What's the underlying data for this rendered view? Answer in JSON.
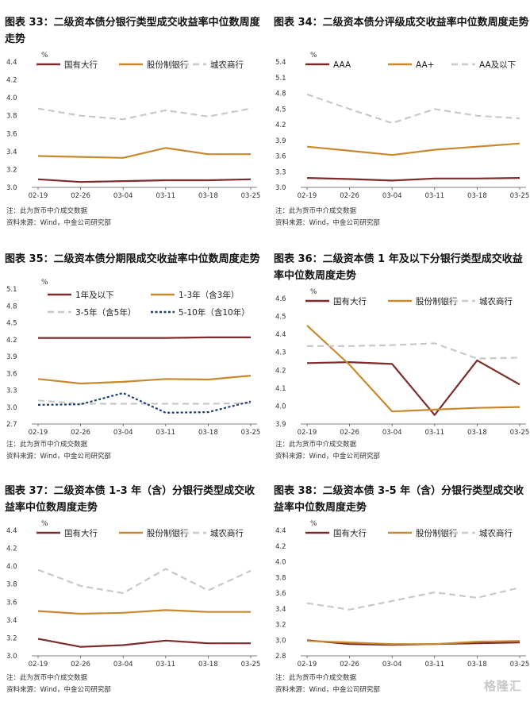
{
  "colors": {
    "dark": "#7b2c2c",
    "gold": "#c8892e",
    "gray": "#c8c8c8",
    "navy": "#1f3d6e"
  },
  "watermark": "格隆汇",
  "chart_data": [
    {
      "type": "line",
      "title": "图表 33：二级资本债分银行类型成交收益率中位数周度走势",
      "unit": "%",
      "categories": [
        "02-19",
        "02-26",
        "03-04",
        "03-11",
        "03-18",
        "03-25"
      ],
      "ylim": [
        3.0,
        4.4
      ],
      "yticks": [
        3.0,
        3.2,
        3.4,
        3.6,
        3.8,
        4.0,
        4.2,
        4.4
      ],
      "ydec": 1,
      "series": [
        {
          "name": "国有大行",
          "color": "#7b2c2c",
          "style": "solid",
          "values": [
            3.09,
            3.06,
            3.07,
            3.08,
            3.08,
            3.09
          ]
        },
        {
          "name": "股份制银行",
          "color": "#c8892e",
          "style": "solid",
          "values": [
            3.35,
            3.34,
            3.33,
            3.44,
            3.37,
            3.37
          ]
        },
        {
          "name": "城农商行",
          "color": "#c8c8c8",
          "style": "dash",
          "values": [
            3.88,
            3.8,
            3.76,
            3.86,
            3.79,
            3.88
          ]
        }
      ],
      "source_note": "注：此为货币中介成交数据",
      "source": "资料来源：Wind，中金公司研究部"
    },
    {
      "type": "line",
      "title": "图表 34：二级资本债分评级成交收益率中位数周度走势",
      "unit": "%",
      "categories": [
        "02-19",
        "02-26",
        "03-04",
        "03-11",
        "03-18",
        "03-25"
      ],
      "ylim": [
        3.0,
        5.4
      ],
      "yticks": [
        3.0,
        3.3,
        3.6,
        3.9,
        4.2,
        4.5,
        4.8,
        5.1,
        5.4
      ],
      "ydec": 1,
      "series": [
        {
          "name": "AAA",
          "color": "#7b2c2c",
          "style": "solid",
          "values": [
            3.18,
            3.16,
            3.13,
            3.17,
            3.17,
            3.18
          ]
        },
        {
          "name": "AA+",
          "color": "#c8892e",
          "style": "solid",
          "values": [
            3.78,
            3.7,
            3.62,
            3.72,
            3.78,
            3.84
          ]
        },
        {
          "name": "AA及以下",
          "color": "#c8c8c8",
          "style": "dash",
          "values": [
            4.78,
            4.5,
            4.23,
            4.5,
            4.37,
            4.32
          ]
        }
      ],
      "source_note": "注：此为货币中介成交数据",
      "source": "资料来源：Wind，中金公司研究部"
    },
    {
      "type": "line",
      "title": "图表 35：二级资本债分期限成交收益率中位数周度走势",
      "unit": "%",
      "categories": [
        "02-19",
        "02-26",
        "03-04",
        "03-11",
        "03-18",
        "03-25"
      ],
      "ylim": [
        2.7,
        5.1
      ],
      "yticks": [
        2.7,
        3.0,
        3.3,
        3.6,
        3.9,
        4.2,
        4.5,
        4.8,
        5.1
      ],
      "ydec": 1,
      "legend_rows": 2,
      "series": [
        {
          "name": "1年及以下",
          "color": "#7b2c2c",
          "style": "solid",
          "values": [
            4.23,
            4.23,
            4.23,
            4.23,
            4.24,
            4.24
          ]
        },
        {
          "name": "1-3年（含3年）",
          "color": "#c8892e",
          "style": "solid",
          "values": [
            3.5,
            3.42,
            3.45,
            3.5,
            3.49,
            3.56
          ]
        },
        {
          "name": "3-5年（含5年）",
          "color": "#c8c8c8",
          "style": "dash",
          "values": [
            3.12,
            3.06,
            3.06,
            3.06,
            3.06,
            3.07
          ]
        },
        {
          "name": "5-10年（含10年）",
          "color": "#1f3d6e",
          "style": "dot",
          "values": [
            3.04,
            3.05,
            3.25,
            2.9,
            2.91,
            3.1
          ]
        }
      ],
      "source_note": "注：此为货币中介成交数据",
      "source": "资料来源：Wind，中金公司研究部"
    },
    {
      "type": "line",
      "title": "图表 36：二级资本债 1 年及以下分银行类型成交收益率中位数周度走势",
      "unit": "%",
      "categories": [
        "02-19",
        "02-26",
        "03-04",
        "03-11",
        "03-18",
        "03-25"
      ],
      "ylim": [
        3.9,
        4.6
      ],
      "yticks": [
        3.9,
        4.0,
        4.1,
        4.2,
        4.3,
        4.4,
        4.5,
        4.6
      ],
      "ydec": 1,
      "series": [
        {
          "name": "国有大行",
          "color": "#7b2c2c",
          "style": "solid",
          "values": [
            4.24,
            4.245,
            4.235,
            3.95,
            4.255,
            4.12
          ]
        },
        {
          "name": "股份制银行",
          "color": "#c8892e",
          "style": "solid",
          "values": [
            4.45,
            4.23,
            3.97,
            3.98,
            3.99,
            3.995
          ]
        },
        {
          "name": "城农商行",
          "color": "#c8c8c8",
          "style": "dash",
          "values": [
            4.335,
            4.335,
            4.34,
            4.35,
            4.265,
            4.27
          ]
        }
      ],
      "source_note": "注：此为货币中介成交数据",
      "source": "资料来源：Wind，中金公司研究部"
    },
    {
      "type": "line",
      "title": "图表 37：二级资本债 1-3 年（含）分银行类型成交收益率中位数周度走势",
      "unit": "%",
      "categories": [
        "02-19",
        "02-26",
        "03-04",
        "03-11",
        "03-18",
        "03-25"
      ],
      "ylim": [
        3.0,
        4.4
      ],
      "yticks": [
        3.0,
        3.2,
        3.4,
        3.6,
        3.8,
        4.0,
        4.2,
        4.4
      ],
      "ydec": 1,
      "series": [
        {
          "name": "国有大行",
          "color": "#7b2c2c",
          "style": "solid",
          "values": [
            3.19,
            3.1,
            3.12,
            3.17,
            3.14,
            3.14
          ]
        },
        {
          "name": "股份制银行",
          "color": "#c8892e",
          "style": "solid",
          "values": [
            3.5,
            3.47,
            3.48,
            3.51,
            3.49,
            3.49
          ]
        },
        {
          "name": "城农商行",
          "color": "#c8c8c8",
          "style": "dash",
          "values": [
            3.96,
            3.78,
            3.7,
            3.97,
            3.73,
            3.95
          ]
        }
      ],
      "source_note": "注：此为货币中介成交数据",
      "source": "资料来源：Wind，中金公司研究部"
    },
    {
      "type": "line",
      "title": "图表 38：二级资本债 3-5 年（含）分银行类型成交收益率中位数周度走势",
      "unit": "%",
      "categories": [
        "02-19",
        "02-26",
        "03-04",
        "03-11",
        "03-18",
        "03-25"
      ],
      "ylim": [
        2.8,
        4.4
      ],
      "yticks": [
        2.8,
        3.0,
        3.2,
        3.4,
        3.6,
        3.8,
        4.0,
        4.2,
        4.4
      ],
      "ydec": 1,
      "series": [
        {
          "name": "国有大行",
          "color": "#7b2c2c",
          "style": "solid",
          "values": [
            3.0,
            2.95,
            2.94,
            2.95,
            2.96,
            2.97
          ]
        },
        {
          "name": "股份制银行",
          "color": "#c8892e",
          "style": "solid",
          "values": [
            2.99,
            2.97,
            2.95,
            2.95,
            2.98,
            2.99
          ]
        },
        {
          "name": "城农商行",
          "color": "#c8c8c8",
          "style": "dash",
          "values": [
            3.47,
            3.39,
            3.5,
            3.61,
            3.54,
            3.67
          ]
        }
      ],
      "source_note": "注：此为货币中介成交数据",
      "source": "资料来源：Wind，中金公司研究部"
    }
  ]
}
